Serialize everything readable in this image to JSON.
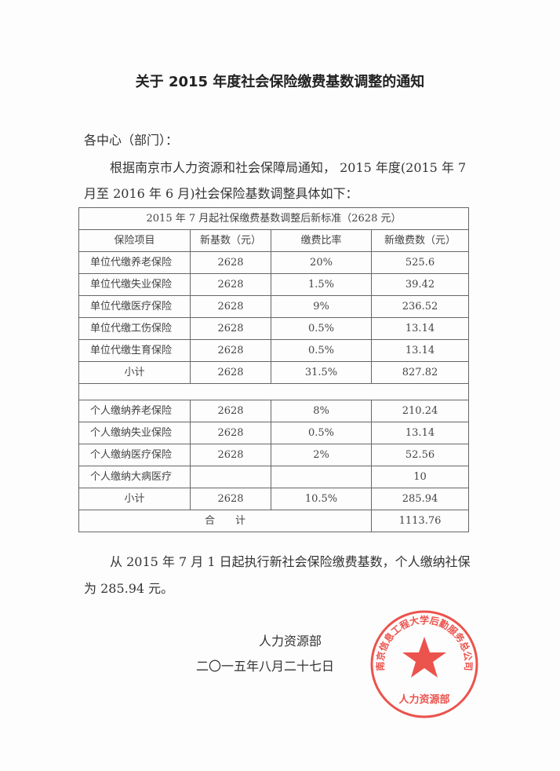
{
  "title": "关于 2015 年度社会保险缴费基数调整的通知",
  "salutation": "各中心（部门）：",
  "intro_line1": "根据南京市人力资源和社会保障局通知， 2015 年度(2015 年 7",
  "intro_line2": "月至 2016 年 6 月)社会保险基数调整具体如下：",
  "table": {
    "caption": "2015 年 7 月起社保缴费基数调整后新标准（2628 元）",
    "headers": [
      "保险项目",
      "新基数（元）",
      "缴费比率",
      "新缴费数（元）"
    ],
    "employer_rows": [
      [
        "单位代缴养老保险",
        "2628",
        "20%",
        "525.6"
      ],
      [
        "单位代缴失业保险",
        "2628",
        "1.5%",
        "39.42"
      ],
      [
        "单位代缴医疗保险",
        "2628",
        "9%",
        "236.52"
      ],
      [
        "单位代缴工伤保险",
        "2628",
        "0.5%",
        "13.14"
      ],
      [
        "单位代缴生育保险",
        "2628",
        "0.5%",
        "13.14"
      ],
      [
        "小计",
        "2628",
        "31.5%",
        "827.82"
      ]
    ],
    "personal_rows": [
      [
        "个人缴纳养老保险",
        "2628",
        "8%",
        "210.24"
      ],
      [
        "个人缴纳失业保险",
        "2628",
        "0.5%",
        "13.14"
      ],
      [
        "个人缴纳医疗保险",
        "2628",
        "2%",
        "52.56"
      ],
      [
        "个人缴纳大病医疗",
        "",
        "",
        "10"
      ],
      [
        "小计",
        "2628",
        "10.5%",
        "285.94"
      ]
    ],
    "total_label": "合　　计",
    "total_value": "1113.76"
  },
  "closing_line1": "从 2015 年 7 月 1 日起执行新社会保险缴费基数，个人缴纳社保",
  "closing_line2": "为 285.94 元。",
  "signature": "人力资源部",
  "date": "二〇一五年八月二十七日",
  "stamp": {
    "ring_text": "南京信息工程大学后勤服务总公司",
    "center_text": "人力资源部",
    "color": "#e8352e"
  }
}
